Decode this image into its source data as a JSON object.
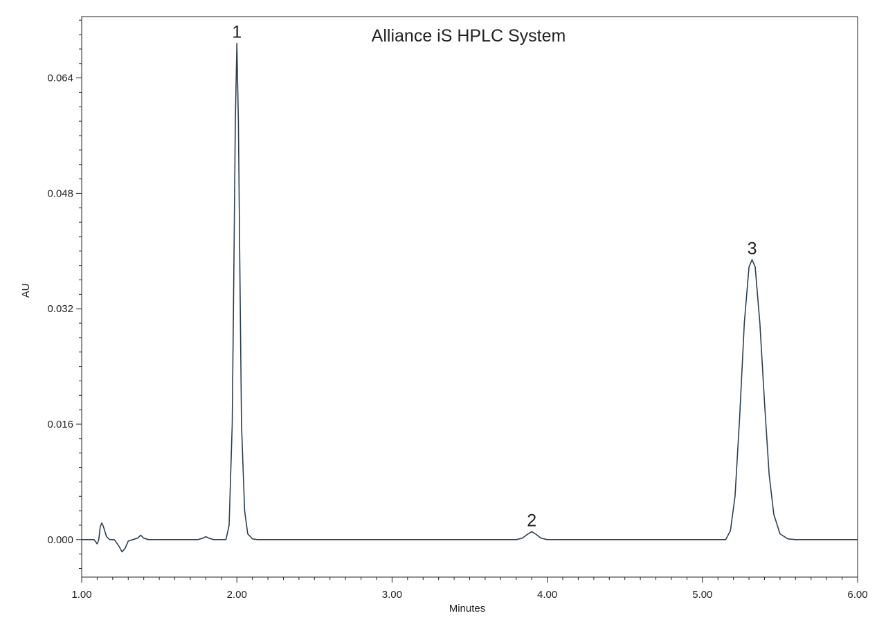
{
  "chart_data": {
    "type": "line",
    "title": "Alliance iS HPLC System",
    "xlabel": "Minutes",
    "ylabel": "AU",
    "xlim": [
      1.0,
      6.0
    ],
    "ylim": [
      -0.0052,
      0.0725
    ],
    "grid": false,
    "legend": "none",
    "x_ticks": [
      {
        "value": 1.0,
        "label": "1.00"
      },
      {
        "value": 2.0,
        "label": "2.00"
      },
      {
        "value": 3.0,
        "label": "3.00"
      },
      {
        "value": 4.0,
        "label": "4.00"
      },
      {
        "value": 5.0,
        "label": "5.00"
      },
      {
        "value": 6.0,
        "label": "6.00"
      }
    ],
    "y_ticks": [
      {
        "value": 0.0,
        "label": "0.000"
      },
      {
        "value": 0.016,
        "label": "0.016"
      },
      {
        "value": 0.032,
        "label": "0.032"
      },
      {
        "value": 0.048,
        "label": "0.048"
      },
      {
        "value": 0.064,
        "label": "0.064"
      }
    ],
    "x_minor_step": 0.1,
    "y_minor_step": 0.002,
    "trace_color": "#2b3f52",
    "series": [
      {
        "points": [
          [
            1.0,
            0.0
          ],
          [
            1.08,
            0.0
          ],
          [
            1.1,
            -0.0006
          ],
          [
            1.11,
            0.0
          ],
          [
            1.12,
            0.0018
          ],
          [
            1.13,
            0.0023
          ],
          [
            1.14,
            0.0018
          ],
          [
            1.16,
            0.0004
          ],
          [
            1.18,
            0.0
          ],
          [
            1.21,
            0.0
          ],
          [
            1.24,
            -0.0009
          ],
          [
            1.26,
            -0.0017
          ],
          [
            1.28,
            -0.0012
          ],
          [
            1.3,
            -0.0002
          ],
          [
            1.33,
            0.0
          ],
          [
            1.36,
            0.0002
          ],
          [
            1.38,
            0.0006
          ],
          [
            1.4,
            0.0002
          ],
          [
            1.43,
            0.0
          ],
          [
            1.75,
            0.0
          ],
          [
            1.78,
            0.0002
          ],
          [
            1.8,
            0.0004
          ],
          [
            1.82,
            0.0002
          ],
          [
            1.85,
            0.0
          ],
          [
            1.93,
            0.0
          ],
          [
            1.95,
            0.002
          ],
          [
            1.97,
            0.016
          ],
          [
            1.98,
            0.036
          ],
          [
            1.99,
            0.058
          ],
          [
            2.0,
            0.0688
          ],
          [
            2.01,
            0.058
          ],
          [
            2.02,
            0.036
          ],
          [
            2.03,
            0.016
          ],
          [
            2.05,
            0.004
          ],
          [
            2.07,
            0.0008
          ],
          [
            2.1,
            0.0001
          ],
          [
            2.13,
            0.0
          ],
          [
            3.8,
            0.0
          ],
          [
            3.84,
            0.0002
          ],
          [
            3.87,
            0.0007
          ],
          [
            3.9,
            0.0011
          ],
          [
            3.93,
            0.0007
          ],
          [
            3.96,
            0.0002
          ],
          [
            4.0,
            0.0
          ],
          [
            5.15,
            0.0
          ],
          [
            5.18,
            0.0012
          ],
          [
            5.21,
            0.006
          ],
          [
            5.24,
            0.017
          ],
          [
            5.27,
            0.03
          ],
          [
            5.3,
            0.0378
          ],
          [
            5.32,
            0.0388
          ],
          [
            5.34,
            0.0378
          ],
          [
            5.37,
            0.03
          ],
          [
            5.4,
            0.019
          ],
          [
            5.43,
            0.009
          ],
          [
            5.46,
            0.0035
          ],
          [
            5.5,
            0.0008
          ],
          [
            5.55,
            0.0001
          ],
          [
            5.6,
            0.0
          ],
          [
            6.0,
            0.0
          ]
        ]
      }
    ],
    "peaks": [
      {
        "label": "1",
        "x": 2.0,
        "y": 0.0688
      },
      {
        "label": "2",
        "x": 3.9,
        "y": 0.0011
      },
      {
        "label": "3",
        "x": 5.32,
        "y": 0.0388
      }
    ]
  }
}
